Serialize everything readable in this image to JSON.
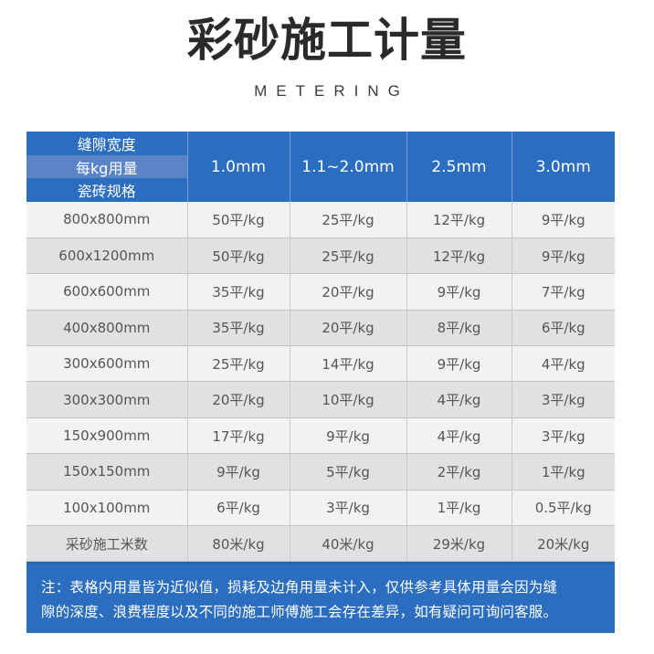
{
  "header": {
    "title": "彩砂施工计量",
    "subtitle": "METERING"
  },
  "table": {
    "corner": {
      "line1": "缝隙宽度",
      "line2": "每kg用量",
      "line3": "瓷砖规格"
    },
    "columns": [
      "1.0mm",
      "1.1~2.0mm",
      "2.5mm",
      "3.0mm"
    ],
    "rows": [
      {
        "spec": "800x800mm",
        "values": [
          "50平/kg",
          "25平/kg",
          "12平/kg",
          "9平/kg"
        ]
      },
      {
        "spec": "600x1200mm",
        "values": [
          "50平/kg",
          "25平/kg",
          "12平/kg",
          "9平/kg"
        ]
      },
      {
        "spec": "600x600mm",
        "values": [
          "35平/kg",
          "20平/kg",
          "9平/kg",
          "7平/kg"
        ]
      },
      {
        "spec": "400x800mm",
        "values": [
          "35平/kg",
          "20平/kg",
          "8平/kg",
          "6平/kg"
        ]
      },
      {
        "spec": "300x600mm",
        "values": [
          "25平/kg",
          "14平/kg",
          "9平/kg",
          "4平/kg"
        ]
      },
      {
        "spec": "300x300mm",
        "values": [
          "20平/kg",
          "10平/kg",
          "4平/kg",
          "3平/kg"
        ]
      },
      {
        "spec": "150x900mm",
        "values": [
          "17平/kg",
          "9平/kg",
          "4平/kg",
          "3平/kg"
        ]
      },
      {
        "spec": "150x150mm",
        "values": [
          "9平/kg",
          "5平/kg",
          "2平/kg",
          "1平/kg"
        ]
      },
      {
        "spec": "100x100mm",
        "values": [
          "6平/kg",
          "3平/kg",
          "1平/kg",
          "0.5平/kg"
        ]
      },
      {
        "spec": "采砂施工米数",
        "values": [
          "80米/kg",
          "40米/kg",
          "29米/kg",
          "20米/kg"
        ]
      }
    ]
  },
  "note": {
    "line1": "注：表格内用量皆为近似值，损耗及边角用量未计入，仅供参考具体用量会因为缝",
    "line2": "隙的深度、浪费程度以及不同的施工师傅施工会存在差异，如有疑问可询问客服。"
  },
  "colors": {
    "header_blue": "#2b6dbf",
    "corner_band": "#5b84c6",
    "row_light": "#f2f2f2",
    "row_dark": "#e1e1e1",
    "cell_text": "#555555",
    "title_text": "#2a2a2a"
  }
}
